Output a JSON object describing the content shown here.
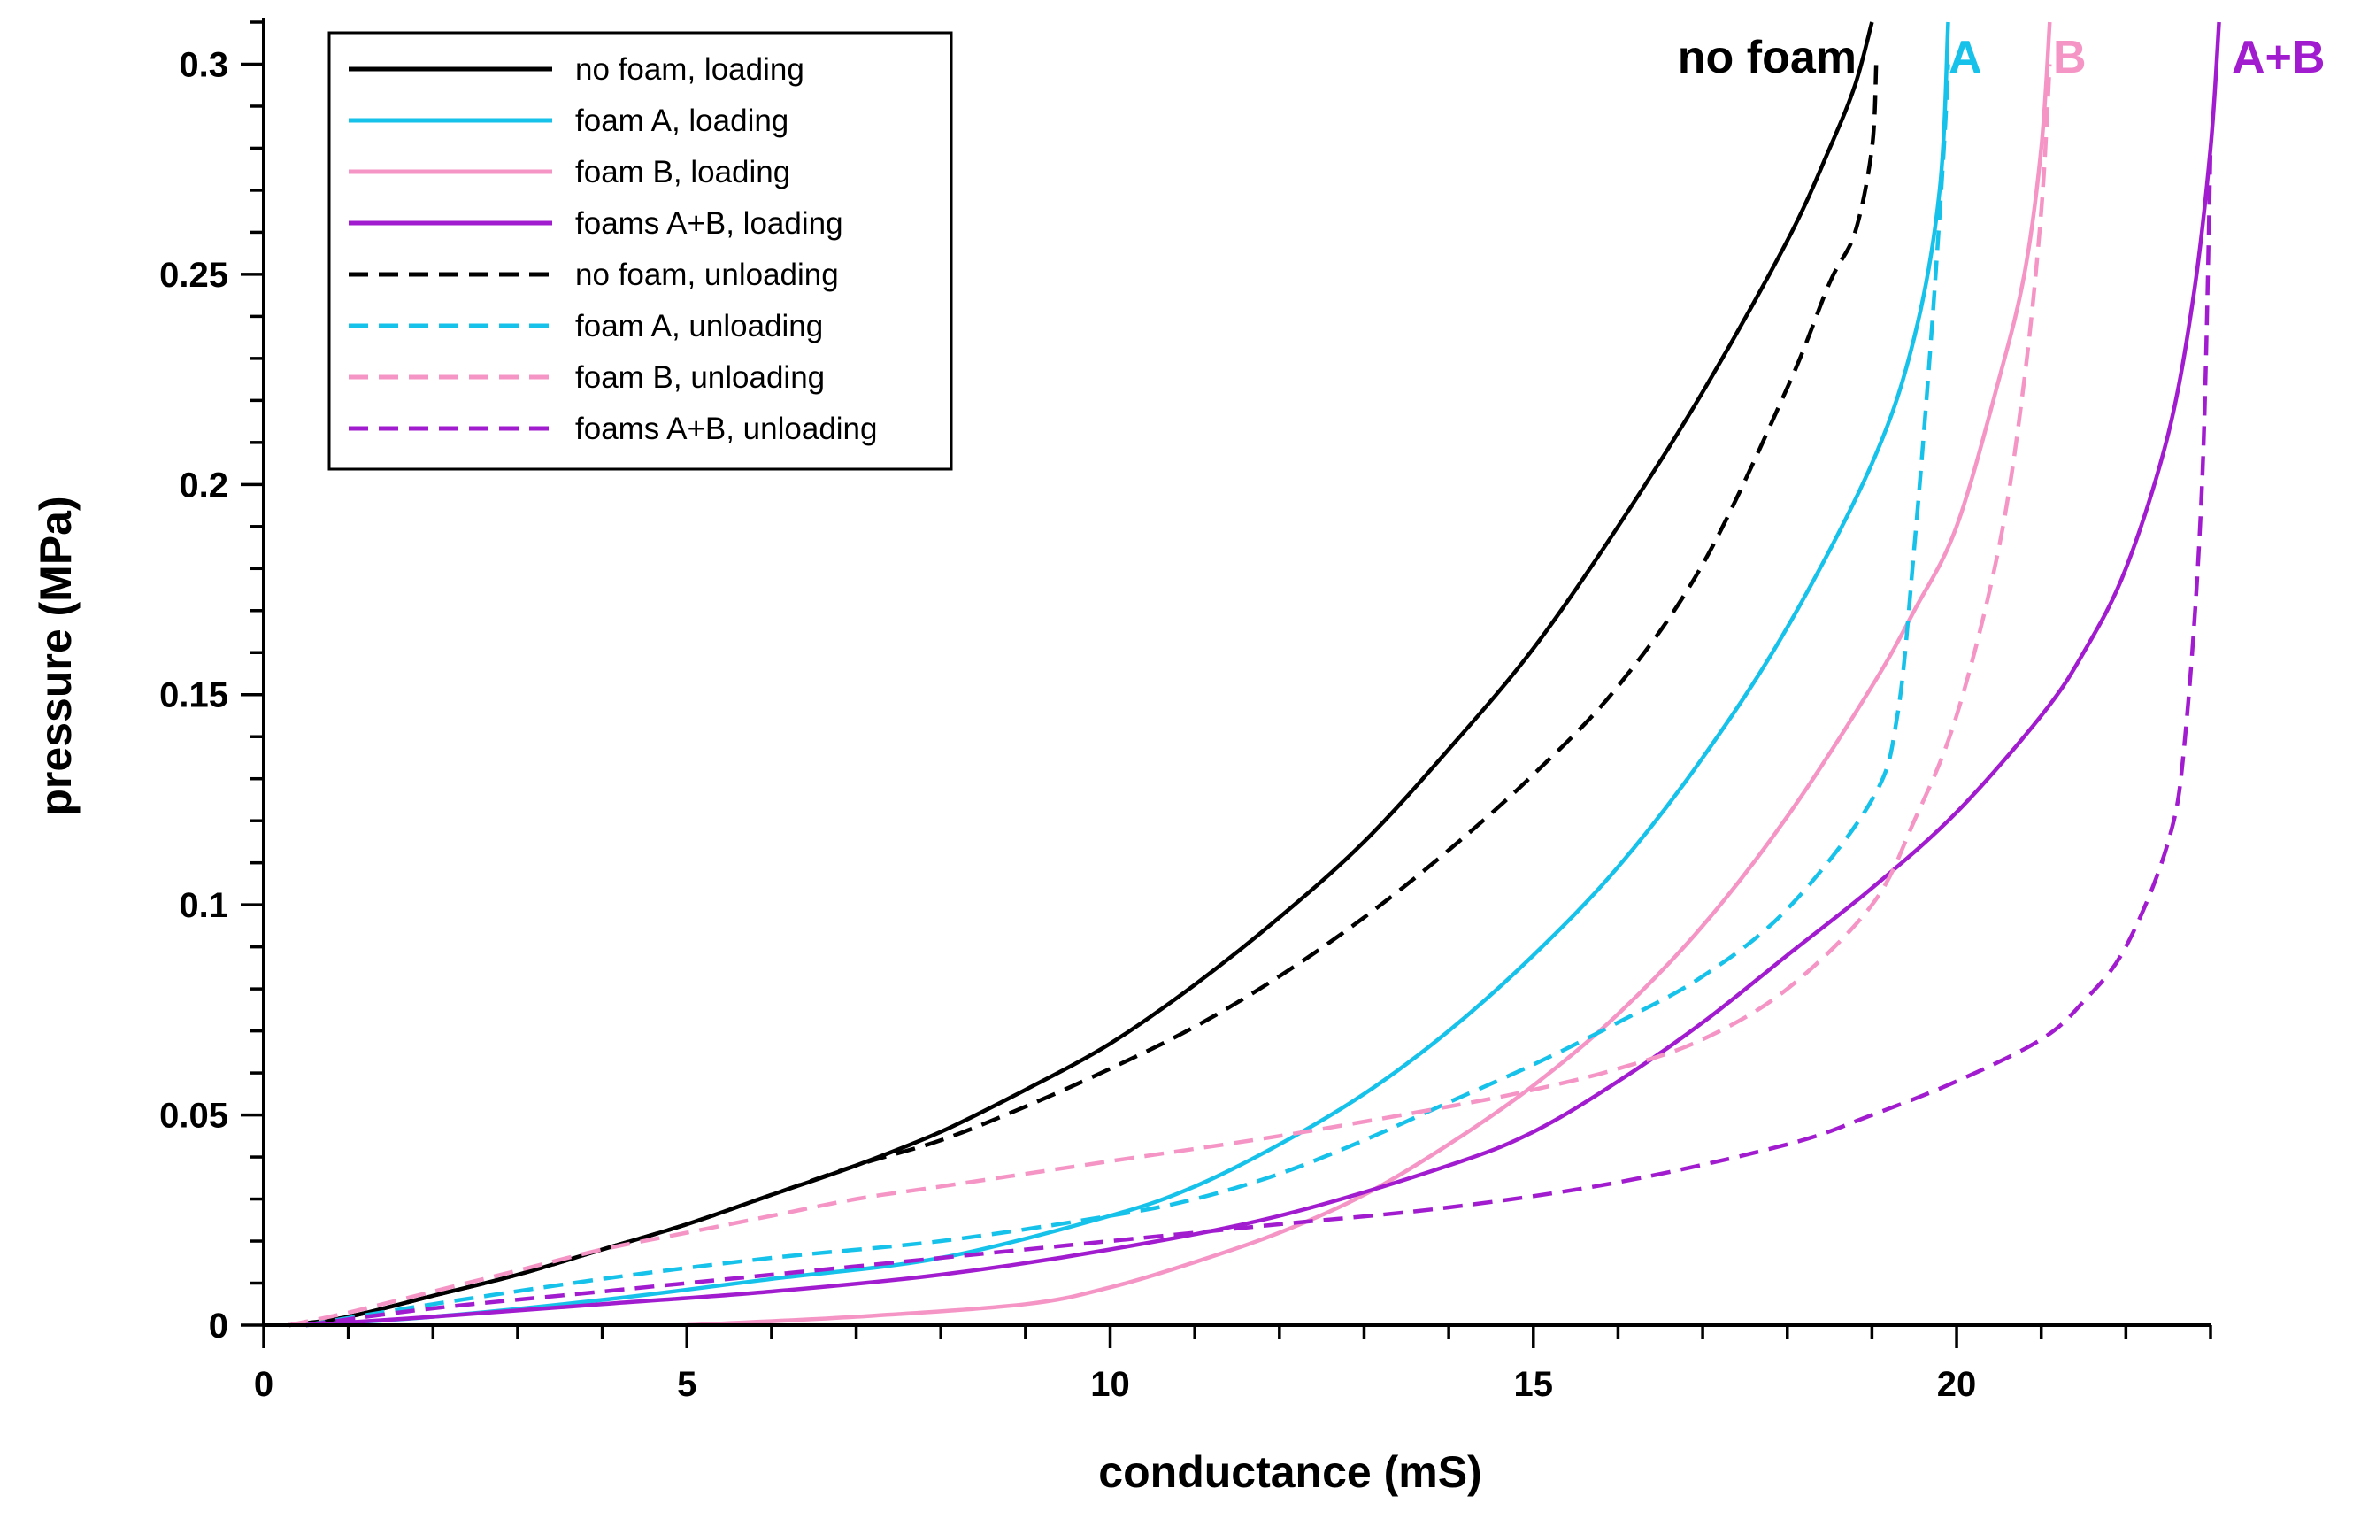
{
  "chart_data": {
    "type": "line",
    "title": "",
    "xlabel": "conductance (mS)",
    "ylabel": "pressure (MPa)",
    "xlim": [
      0,
      23
    ],
    "ylim": [
      0,
      0.31
    ],
    "x_ticks": [
      0,
      5,
      10,
      15,
      20
    ],
    "x_tick_labels": [
      "0",
      "5",
      "10",
      "15",
      "20"
    ],
    "y_ticks": [
      0,
      0.05,
      0.1,
      0.15,
      0.2,
      0.25,
      0.3
    ],
    "y_tick_labels": [
      "0",
      "0.05",
      "0.1",
      "0.15",
      "0.2",
      "0.25",
      "0.3"
    ],
    "legend_position": "top-left",
    "grid": false,
    "colors": {
      "no_foam": "#000000",
      "foam_a": "#17c2ea",
      "foam_b": "#f595c6",
      "foam_ab": "#a21ccf"
    },
    "curve_labels": [
      {
        "text": "no foam",
        "series": "no_foam",
        "color": "#000000"
      },
      {
        "text": "A",
        "series": "foam_a",
        "color": "#17c2ea"
      },
      {
        "text": "B",
        "series": "foam_b",
        "color": "#f595c6"
      },
      {
        "text": "A+B",
        "series": "foam_ab",
        "color": "#a21ccf"
      }
    ],
    "series": [
      {
        "name": "no foam, loading",
        "key": "no_foam",
        "dash": "solid",
        "color": "#000000",
        "points": [
          [
            0.3,
            0
          ],
          [
            1,
            0.002
          ],
          [
            2,
            0.007
          ],
          [
            3,
            0.012
          ],
          [
            4,
            0.018
          ],
          [
            5,
            0.024
          ],
          [
            6,
            0.031
          ],
          [
            7,
            0.038
          ],
          [
            8,
            0.046
          ],
          [
            9,
            0.056
          ],
          [
            10,
            0.067
          ],
          [
            11,
            0.081
          ],
          [
            12,
            0.097
          ],
          [
            13,
            0.115
          ],
          [
            14,
            0.137
          ],
          [
            15,
            0.161
          ],
          [
            16,
            0.19
          ],
          [
            17,
            0.222
          ],
          [
            18,
            0.258
          ],
          [
            18.5,
            0.28
          ],
          [
            18.8,
            0.295
          ],
          [
            19,
            0.31
          ]
        ]
      },
      {
        "name": "foam A, loading",
        "key": "foam_a",
        "dash": "solid",
        "color": "#17c2ea",
        "points": [
          [
            0.5,
            0
          ],
          [
            2,
            0.002
          ],
          [
            4,
            0.006
          ],
          [
            6,
            0.011
          ],
          [
            8,
            0.016
          ],
          [
            10,
            0.026
          ],
          [
            11,
            0.033
          ],
          [
            12,
            0.043
          ],
          [
            13,
            0.055
          ],
          [
            14,
            0.07
          ],
          [
            15,
            0.088
          ],
          [
            16,
            0.109
          ],
          [
            17,
            0.135
          ],
          [
            18,
            0.166
          ],
          [
            19,
            0.205
          ],
          [
            19.5,
            0.235
          ],
          [
            19.8,
            0.27
          ],
          [
            19.9,
            0.31
          ]
        ]
      },
      {
        "name": "foam B, loading",
        "key": "foam_b",
        "dash": "solid",
        "color": "#f595c6",
        "points": [
          [
            5,
            0
          ],
          [
            7,
            0.002
          ],
          [
            9,
            0.005
          ],
          [
            10,
            0.009
          ],
          [
            11,
            0.015
          ],
          [
            12,
            0.022
          ],
          [
            13,
            0.031
          ],
          [
            14,
            0.043
          ],
          [
            15,
            0.057
          ],
          [
            16,
            0.074
          ],
          [
            17,
            0.095
          ],
          [
            18,
            0.121
          ],
          [
            19,
            0.152
          ],
          [
            19.5,
            0.17
          ],
          [
            20,
            0.19
          ],
          [
            20.5,
            0.225
          ],
          [
            20.8,
            0.25
          ],
          [
            21,
            0.28
          ],
          [
            21.1,
            0.31
          ]
        ]
      },
      {
        "name": "foams A+B, loading",
        "key": "foam_ab",
        "dash": "solid",
        "color": "#a21ccf",
        "points": [
          [
            0.5,
            0
          ],
          [
            2,
            0.002
          ],
          [
            4,
            0.005
          ],
          [
            6,
            0.008
          ],
          [
            8,
            0.012
          ],
          [
            10,
            0.018
          ],
          [
            12,
            0.026
          ],
          [
            14,
            0.038
          ],
          [
            15,
            0.046
          ],
          [
            16,
            0.058
          ],
          [
            17,
            0.072
          ],
          [
            18,
            0.088
          ],
          [
            19,
            0.104
          ],
          [
            20,
            0.122
          ],
          [
            21,
            0.145
          ],
          [
            21.5,
            0.16
          ],
          [
            22,
            0.18
          ],
          [
            22.5,
            0.212
          ],
          [
            22.8,
            0.245
          ],
          [
            23,
            0.28
          ],
          [
            23.1,
            0.31
          ]
        ]
      },
      {
        "name": "no foam, unloading",
        "key": "no_foam",
        "dash": "dashed",
        "color": "#000000",
        "points": [
          [
            0.3,
            0
          ],
          [
            1,
            0.002
          ],
          [
            2,
            0.007
          ],
          [
            3,
            0.012
          ],
          [
            4,
            0.018
          ],
          [
            5,
            0.024
          ],
          [
            6,
            0.031
          ],
          [
            7,
            0.038
          ],
          [
            8,
            0.044
          ],
          [
            9,
            0.052
          ],
          [
            10,
            0.061
          ],
          [
            11,
            0.071
          ],
          [
            12,
            0.083
          ],
          [
            13,
            0.097
          ],
          [
            14,
            0.113
          ],
          [
            15,
            0.131
          ],
          [
            16,
            0.152
          ],
          [
            17,
            0.181
          ],
          [
            18,
            0.223
          ],
          [
            18.5,
            0.248
          ],
          [
            18.8,
            0.26
          ],
          [
            19,
            0.28
          ],
          [
            19.05,
            0.3
          ]
        ]
      },
      {
        "name": "foam A, unloading",
        "key": "foam_a",
        "dash": "dashed",
        "color": "#17c2ea",
        "points": [
          [
            0.5,
            0
          ],
          [
            2,
            0.005
          ],
          [
            4,
            0.011
          ],
          [
            6,
            0.016
          ],
          [
            8,
            0.02
          ],
          [
            10,
            0.026
          ],
          [
            11,
            0.03
          ],
          [
            12,
            0.036
          ],
          [
            13,
            0.044
          ],
          [
            14,
            0.053
          ],
          [
            15,
            0.062
          ],
          [
            16,
            0.072
          ],
          [
            17,
            0.083
          ],
          [
            18,
            0.099
          ],
          [
            19,
            0.125
          ],
          [
            19.3,
            0.145
          ],
          [
            19.5,
            0.185
          ],
          [
            19.7,
            0.235
          ],
          [
            19.85,
            0.28
          ],
          [
            19.9,
            0.3
          ]
        ]
      },
      {
        "name": "foam B, unloading",
        "key": "foam_b",
        "dash": "dashed",
        "color": "#f595c6",
        "points": [
          [
            0.3,
            0
          ],
          [
            1,
            0.003
          ],
          [
            2,
            0.008
          ],
          [
            3,
            0.013
          ],
          [
            4,
            0.018
          ],
          [
            5,
            0.022
          ],
          [
            6,
            0.026
          ],
          [
            7,
            0.03
          ],
          [
            8,
            0.033
          ],
          [
            10,
            0.039
          ],
          [
            12,
            0.045
          ],
          [
            14,
            0.052
          ],
          [
            15,
            0.056
          ],
          [
            16,
            0.061
          ],
          [
            17,
            0.068
          ],
          [
            18,
            0.08
          ],
          [
            19,
            0.1
          ],
          [
            19.5,
            0.12
          ],
          [
            20,
            0.145
          ],
          [
            20.5,
            0.185
          ],
          [
            20.8,
            0.225
          ],
          [
            21,
            0.265
          ],
          [
            21.1,
            0.3
          ]
        ]
      },
      {
        "name": "foams A+B, unloading",
        "key": "foam_ab",
        "dash": "dashed",
        "color": "#a21ccf",
        "points": [
          [
            0.5,
            0
          ],
          [
            2,
            0.004
          ],
          [
            4,
            0.008
          ],
          [
            6,
            0.012
          ],
          [
            8,
            0.016
          ],
          [
            10,
            0.02
          ],
          [
            12,
            0.024
          ],
          [
            14,
            0.028
          ],
          [
            16,
            0.034
          ],
          [
            18,
            0.043
          ],
          [
            19,
            0.05
          ],
          [
            20,
            0.058
          ],
          [
            21,
            0.068
          ],
          [
            21.5,
            0.077
          ],
          [
            22,
            0.09
          ],
          [
            22.5,
            0.115
          ],
          [
            22.7,
            0.14
          ],
          [
            22.9,
            0.2
          ],
          [
            23,
            0.28
          ]
        ]
      }
    ]
  }
}
